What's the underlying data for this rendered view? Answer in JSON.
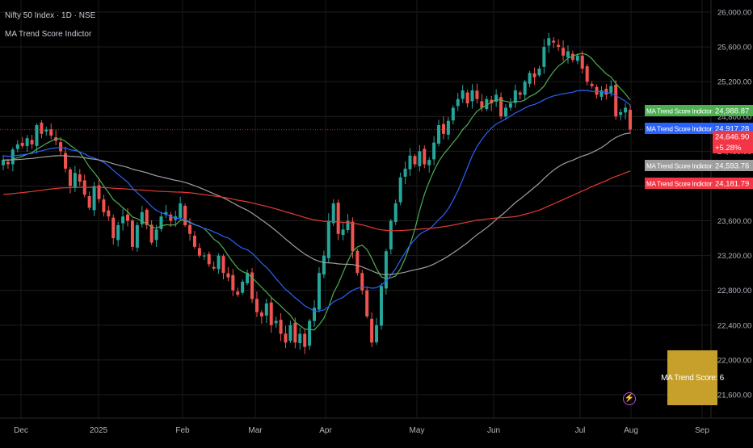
{
  "header": {
    "symbol_line": "Nifty 50 Index · 1D · NSE",
    "indicator_name": "MA Trend Score Indictor"
  },
  "score_label": "MA Trend Score: 6",
  "alert_icon": "lightning-icon",
  "colors": {
    "background": "#000000",
    "candle_up": "#26a69a",
    "candle_down": "#ef5350",
    "ma1": "#4caf50",
    "ma2": "#2962ff",
    "ma3": "#9e9e9e",
    "ma4": "#e53935",
    "score_box": "#c6a02a"
  },
  "chart_data": {
    "type": "candlestick",
    "price_axis": {
      "range": [
        21400,
        26080
      ],
      "ticks": [
        "26,000.00",
        "25,600.00",
        "25,200.00",
        "24,800.00",
        "24,400.00",
        "24,000.00",
        "23,600.00",
        "23,200.00",
        "22,800.00",
        "22,400.00",
        "22,000.00",
        "21,600.00"
      ]
    },
    "time_axis": {
      "labels": [
        "Dec",
        "2025",
        "Feb",
        "Mar",
        "Apr",
        "May",
        "Jun",
        "Jul",
        "Aug",
        "Sep"
      ]
    },
    "price_labels": [
      {
        "label": "MA Trend Score Indictor:MA1",
        "value": "24,988.87",
        "color": "#4caf50"
      },
      {
        "label": "MA Trend Score Indictor:MA2",
        "value": "24,917.28",
        "color": "#2962ff"
      },
      {
        "label": "",
        "value": "24,646.90",
        "sub": "+5.28%",
        "color": "#f23645"
      },
      {
        "label": "MA Trend Score Indictor:MA3",
        "value": "24,593.76",
        "color": "#9e9e9e"
      },
      {
        "label": "MA Trend Score Indictor:MA4",
        "value": "24,181.79",
        "color": "#f23645"
      }
    ],
    "last_price": 24646.9,
    "closes": [
      24300,
      24250,
      24420,
      24480,
      24460,
      24550,
      24480,
      24700,
      24600,
      24650,
      24580,
      24520,
      24400,
      24200,
      24000,
      24150,
      24050,
      23900,
      23750,
      24000,
      23850,
      23700,
      23650,
      23400,
      23550,
      23650,
      23600,
      23300,
      23550,
      23700,
      23550,
      23350,
      23500,
      23650,
      23700,
      23600,
      23650,
      23800,
      23550,
      23450,
      23300,
      23200,
      23200,
      23100,
      23050,
      23200,
      23000,
      22950,
      22800,
      22750,
      22900,
      23000,
      22700,
      22550,
      22500,
      22650,
      22400,
      22450,
      22300,
      22200,
      22400,
      22200,
      22300,
      22150,
      22450,
      22600,
      23000,
      23200,
      23600,
      23800,
      23450,
      23500,
      23600,
      23250,
      23000,
      22800,
      22500,
      22200,
      22400,
      22850,
      23250,
      23600,
      23800,
      24100,
      24200,
      24350,
      24250,
      24400,
      24250,
      24300,
      24500,
      24700,
      24600,
      24750,
      24900,
      25000,
      25100,
      24950,
      25100,
      25000,
      24900,
      25000,
      24950,
      25050,
      24800,
      24900,
      24950,
      25100,
      25050,
      25200,
      25300,
      25250,
      25350,
      25600,
      25700,
      25650,
      25600,
      25500,
      25550,
      25450,
      25500,
      25350,
      25200,
      25150,
      25050,
      25100,
      25050,
      25150,
      24800,
      24850,
      24900,
      24650
    ],
    "series": [
      {
        "name": "MA Trend Score Indictor:MA1",
        "last": 24988.87
      },
      {
        "name": "MA Trend Score Indictor:MA2",
        "last": 24917.28
      },
      {
        "name": "MA Trend Score Indictor:MA3",
        "last": 24593.76
      },
      {
        "name": "MA Trend Score Indictor:MA4",
        "last": 24181.79
      }
    ]
  }
}
